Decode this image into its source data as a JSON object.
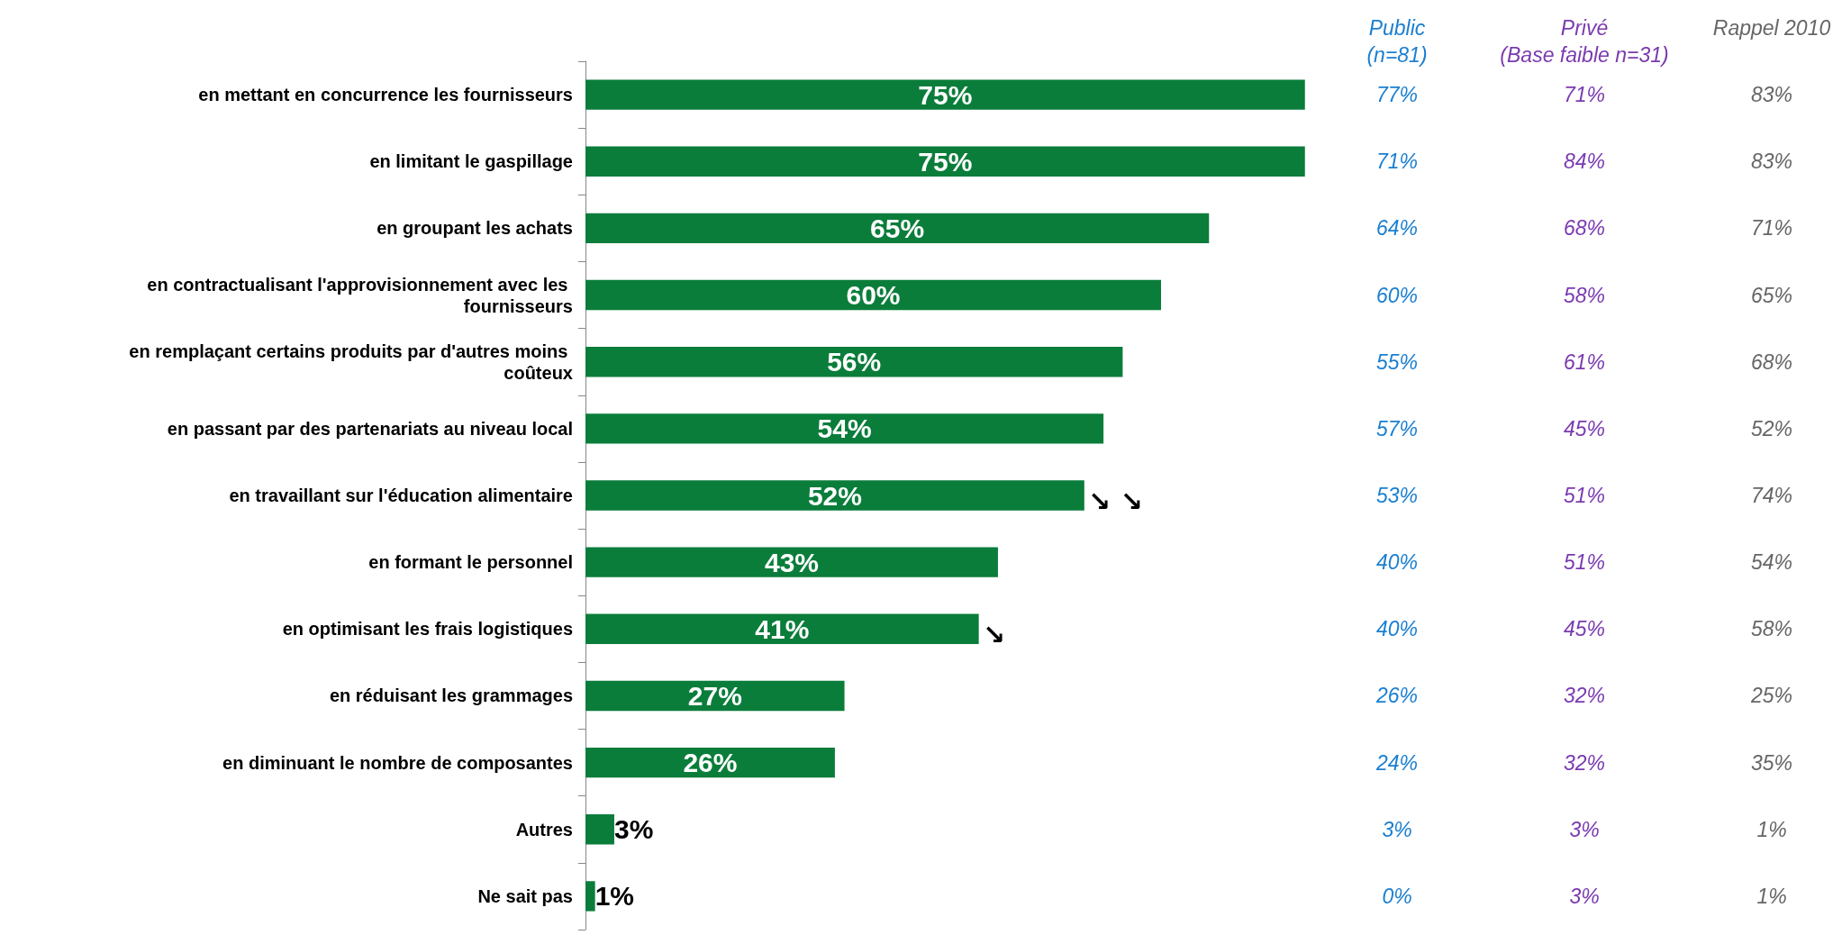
{
  "chart_data": {
    "type": "bar",
    "orientation": "horizontal",
    "color": "#0a7d3b",
    "categories": [
      "en mettant en concurrence les fournisseurs",
      "en limitant le gaspillage",
      "en groupant les achats",
      "en contractualisant l'approvisionnement avec les fournisseurs",
      "en remplaçant certains produits par d'autres moins coûteux",
      "en passant par des partenariats au niveau local",
      "en travaillant sur l'éducation alimentaire",
      "en formant le personnel",
      "en optimisant les frais logistiques",
      "en réduisant les grammages",
      "en diminuant le nombre de composantes",
      "Autres",
      "Ne sait pas"
    ],
    "values": [
      75,
      75,
      65,
      60,
      56,
      54,
      52,
      43,
      41,
      27,
      26,
      3,
      1
    ],
    "value_labels": [
      "75%",
      "75%",
      "65%",
      "60%",
      "56%",
      "54%",
      "52%",
      "43%",
      "41%",
      "27%",
      "26%",
      "3%",
      "1%"
    ],
    "annotations": [
      {
        "text": "↘ ↘",
        "x": 52,
        "y": "en travaillant sur l'éducation alimentaire"
      },
      {
        "text": "↘",
        "x": 41,
        "y": "en optimisant les frais logistiques"
      },
      "Public\n(n=81)",
      "77%",
      "71%",
      "64%",
      "60%",
      "55%",
      "57%",
      "53%",
      "40%",
      "40%",
      "26%",
      "24%",
      "3%",
      "0%",
      "Privé\n(Base faible n=31)",
      "71%",
      "84%",
      "68%",
      "58%",
      "61%",
      "45%",
      "51%",
      "51%",
      "45%",
      "32%",
      "32%",
      "3%",
      "3%",
      "Rappel 2010",
      "83%",
      "83%",
      "71%",
      "65%",
      "68%",
      "52%",
      "74%",
      "54%",
      "58%",
      "25%",
      "35%",
      "1%",
      "1%"
    ]
  }
}
